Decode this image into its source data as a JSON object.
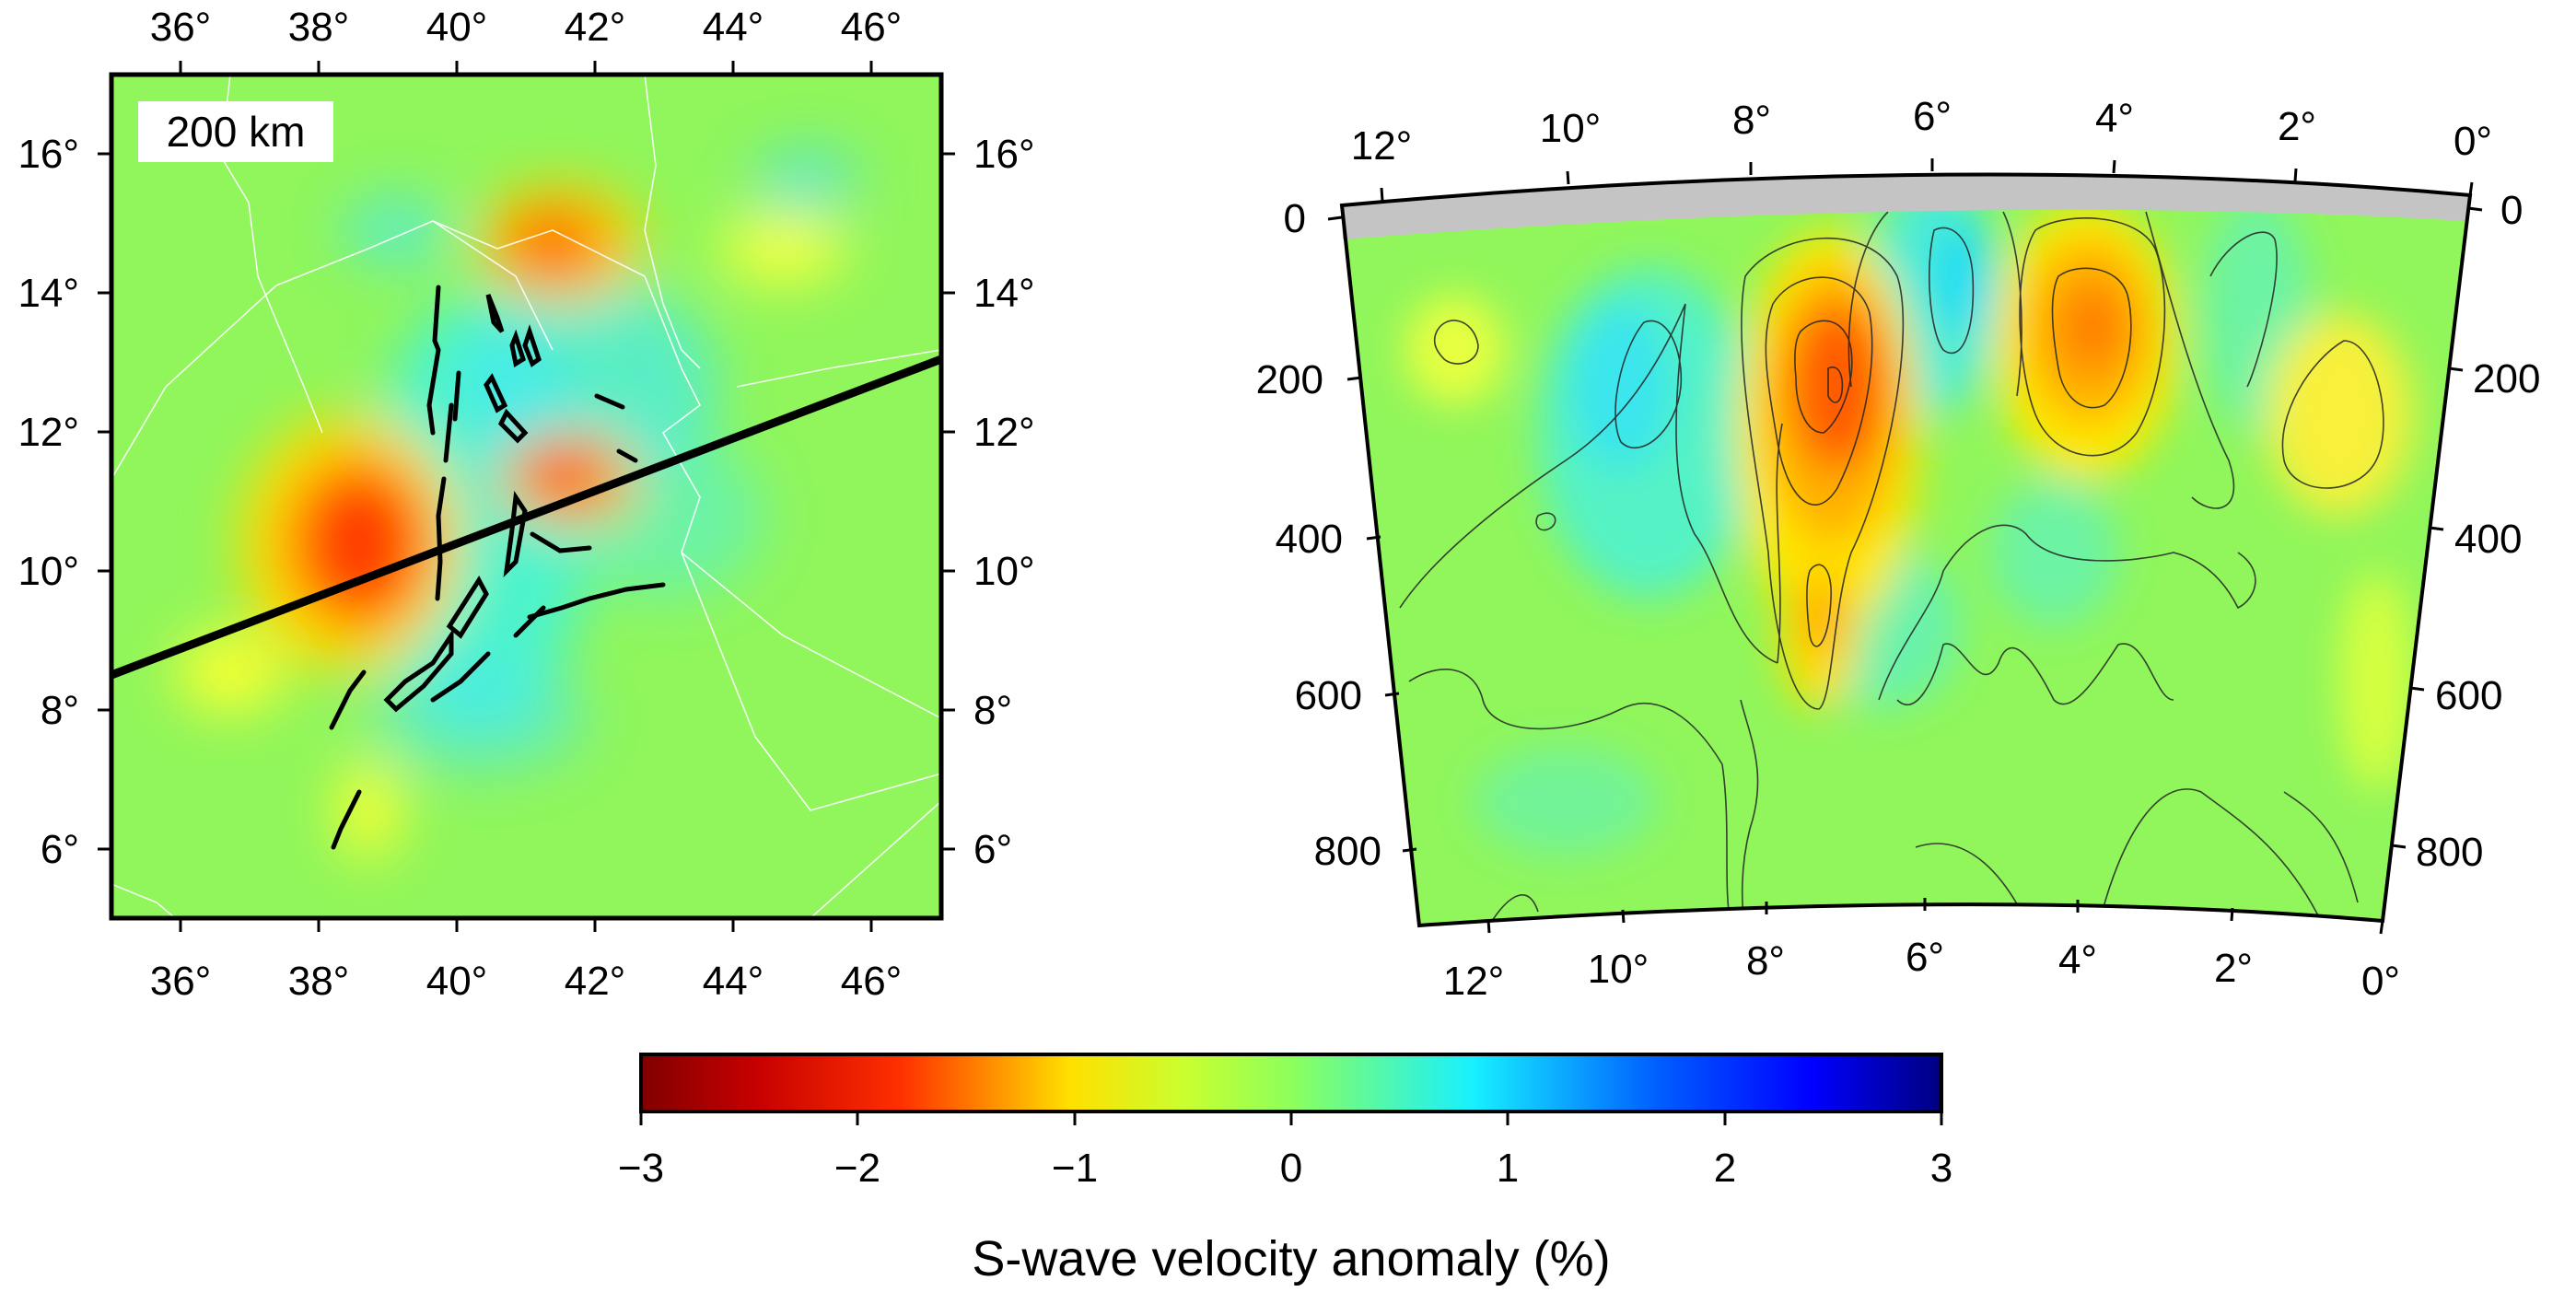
{
  "map_panel": {
    "depth_label": "200 km",
    "lon_ticks": [
      "36°",
      "38°",
      "40°",
      "42°",
      "44°",
      "46°"
    ],
    "lat_ticks": [
      "6°",
      "8°",
      "10°",
      "12°",
      "14°",
      "16°"
    ]
  },
  "section_panel": {
    "top_ticks": [
      "12°",
      "10°",
      "8°",
      "6°",
      "4°",
      "2°",
      "0°"
    ],
    "bottom_ticks": [
      "12°",
      "10°",
      "8°",
      "6°",
      "4°",
      "2°",
      "0°"
    ],
    "depth_ticks": [
      "0",
      "200",
      "400",
      "600",
      "800"
    ]
  },
  "colorbar": {
    "ticks": [
      "−3",
      "−2",
      "−1",
      "0",
      "1",
      "2",
      "3"
    ],
    "title": "S-wave velocity anomaly (%)",
    "colors": [
      "#800000",
      "#ff2a00",
      "#ffe000",
      "#8dff5c",
      "#17f0ff",
      "#0055ff",
      "#000080"
    ]
  }
}
